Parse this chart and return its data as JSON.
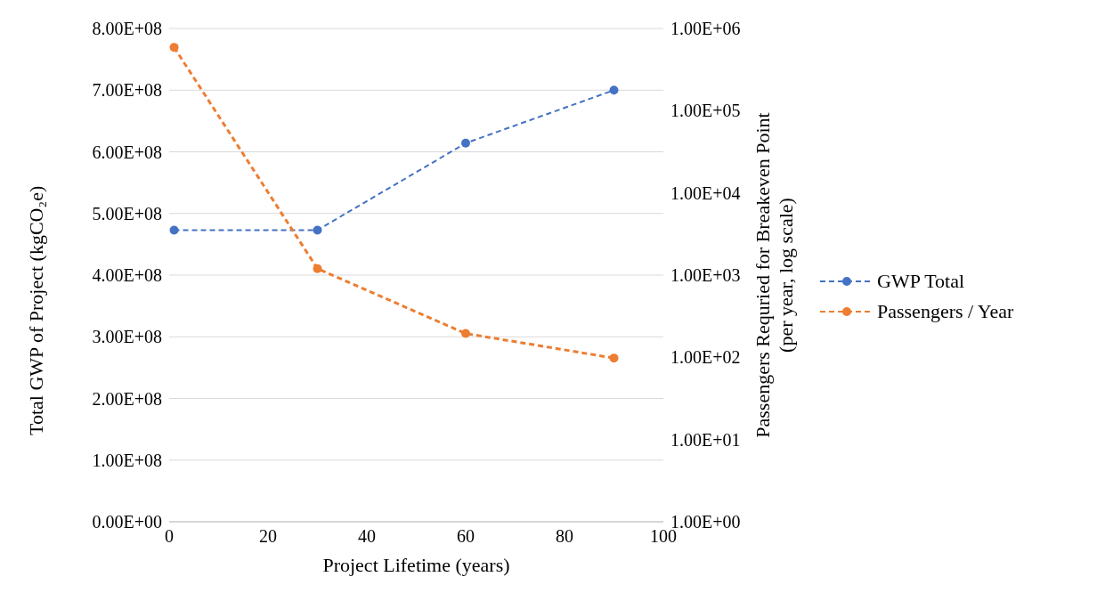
{
  "chart_data": {
    "type": "line",
    "xlabel": "Project Lifetime (years)",
    "ylabel": "Total GWP of Project (kgCO₂e)",
    "y2label": "Passengers Requried for Breakeven Point (per year, log scale)",
    "x": [
      1,
      30,
      60,
      90
    ],
    "series": [
      {
        "name": "GWP Total",
        "color": "#4472c4",
        "values": [
          473000000,
          473000000,
          614000000,
          700000000
        ]
      },
      {
        "name": "Passengers / Year",
        "color": "#ed7d31",
        "axis": "y2",
        "values": [
          590000,
          1200,
          195,
          98
        ]
      }
    ],
    "xlim": [
      0,
      100
    ],
    "xticks": [
      0,
      20,
      40,
      60,
      80,
      100
    ],
    "ylim": [
      0,
      800000000
    ],
    "yticks": [
      {
        "value": 0,
        "label": "0.00E+00"
      },
      {
        "value": 100000000,
        "label": "1.00E+08"
      },
      {
        "value": 200000000,
        "label": "2.00E+08"
      },
      {
        "value": 300000000,
        "label": "3.00E+08"
      },
      {
        "value": 400000000,
        "label": "4.00E+08"
      },
      {
        "value": 500000000,
        "label": "5.00E+08"
      },
      {
        "value": 600000000,
        "label": "6.00E+08"
      },
      {
        "value": 700000000,
        "label": "7.00E+08"
      },
      {
        "value": 800000000,
        "label": "8.00E+08"
      }
    ],
    "y2lim": [
      1,
      1000000
    ],
    "y2ticks": [
      {
        "value": 1,
        "label": "1.00E+00"
      },
      {
        "value": 10,
        "label": "1.00E+01"
      },
      {
        "value": 100,
        "label": "1.00E+02"
      },
      {
        "value": 1000,
        "label": "1.00E+03"
      },
      {
        "value": 10000,
        "label": "1.00E+04"
      },
      {
        "value": 100000,
        "label": "1.00E+05"
      },
      {
        "value": 1000000,
        "label": "1.00E+06"
      }
    ],
    "log": "y2",
    "grid": true,
    "legend": "right",
    "marker": "circle",
    "line_style": "dashed"
  }
}
